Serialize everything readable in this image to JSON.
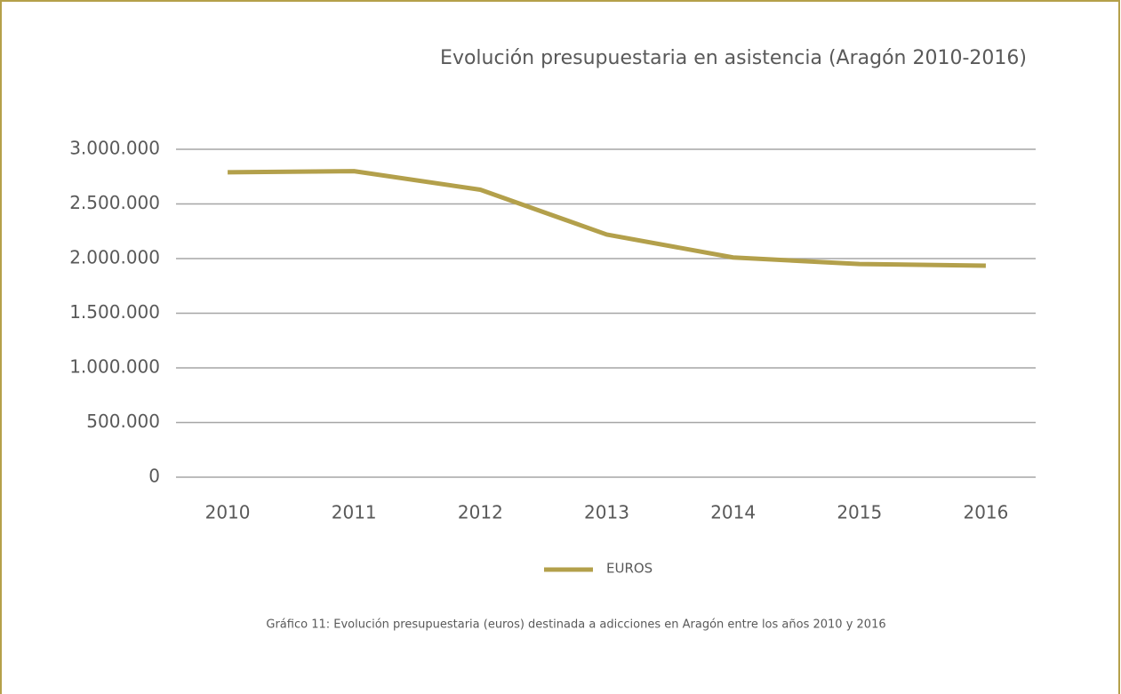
{
  "chart_data": {
    "type": "line",
    "title": "Evolución presupuestaria en asistencia (Aragón 2010-2016)",
    "caption": "Gráfico 11: Evolución presupuestaria (euros) destinada a adicciones en Aragón entre los años 2010 y 2016",
    "categories": [
      "2010",
      "2011",
      "2012",
      "2013",
      "2014",
      "2015",
      "2016"
    ],
    "series": [
      {
        "name": "EUROS",
        "color": "#b3a04b",
        "values": [
          2790000,
          2800000,
          2630000,
          2220000,
          2010000,
          1950000,
          1935000
        ]
      }
    ],
    "ylim": [
      0,
      3000000
    ],
    "yticks": [
      0,
      {
        "value": 500000,
        "label": "500.000"
      },
      {
        "value": 1000000,
        "label": "1.000.000"
      },
      {
        "value": 1500000,
        "label": "1.500.000"
      },
      {
        "value": 2000000,
        "label": "2.000.000"
      },
      {
        "value": 2500000,
        "label": "2.500.000"
      },
      {
        "value": 3000000,
        "label": "3.000.000"
      }
    ],
    "grid": true,
    "legend": "bottom"
  }
}
